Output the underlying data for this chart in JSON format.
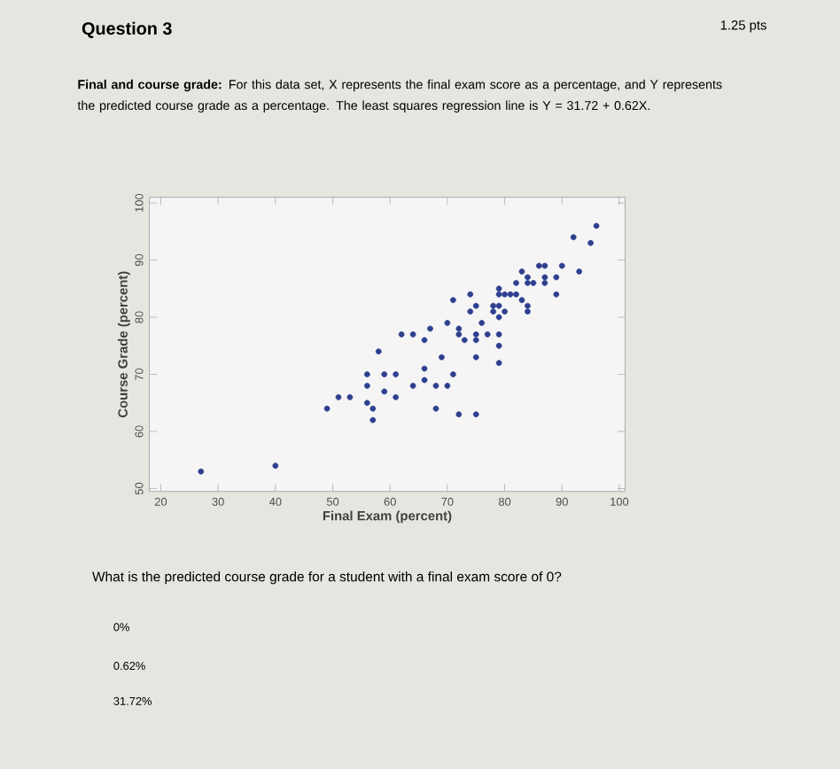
{
  "chart_data": {
    "type": "scatter",
    "title": "Question 3",
    "xlabel": "Final Exam (percent)",
    "ylabel": "Course Grade (percent)",
    "annotations": [
      "1.25 pts",
      "**Final and course grade:** For this data set, X represents the final exam score as a percentage, and Y represents the predicted course grade as a percentage. The least squares regression line is Y = 31.72 + 0.62X.",
      "What is the predicted course grade for a student with a final exam score of 0?",
      "0%",
      "0.62%",
      "31.72%"
    ],
    "x": [
      27,
      40,
      49,
      51,
      53,
      56,
      56,
      56,
      57,
      57,
      58,
      59,
      59,
      61,
      61,
      62,
      64,
      64,
      66,
      66,
      66,
      67,
      68,
      68,
      69,
      70,
      70,
      71,
      71,
      72,
      72,
      72,
      73,
      74,
      74,
      75,
      75,
      75,
      75,
      75,
      76,
      77,
      78,
      78,
      79,
      79,
      79,
      79,
      79,
      79,
      79,
      80,
      80,
      81,
      82,
      82,
      83,
      83,
      84,
      84,
      84,
      84,
      85,
      86,
      87,
      87,
      87,
      89,
      89,
      90,
      92,
      93,
      95,
      96
    ],
    "values": [
      53,
      54,
      64,
      66,
      66,
      70,
      68,
      65,
      64,
      62,
      74,
      70,
      67,
      70,
      66,
      77,
      68,
      77,
      71,
      69,
      76,
      78,
      68,
      64,
      73,
      79,
      68,
      70,
      83,
      63,
      78,
      77,
      76,
      84,
      81,
      82,
      77,
      76,
      73,
      63,
      79,
      77,
      82,
      81,
      85,
      84,
      82,
      80,
      77,
      75,
      72,
      84,
      81,
      84,
      84,
      86,
      88,
      83,
      87,
      86,
      82,
      81,
      86,
      89,
      89,
      87,
      86,
      87,
      84,
      89,
      94,
      88,
      93,
      96
    ],
    "color": "#2f3f8f",
    "marker": "circle",
    "xlim": [
      18,
      101
    ],
    "ylim": [
      49.5,
      101
    ],
    "xticks": [
      20,
      30,
      40,
      50,
      60,
      70,
      80,
      90,
      100
    ],
    "yticks": [
      50,
      60,
      70,
      80,
      90,
      100
    ],
    "grid": false
  }
}
